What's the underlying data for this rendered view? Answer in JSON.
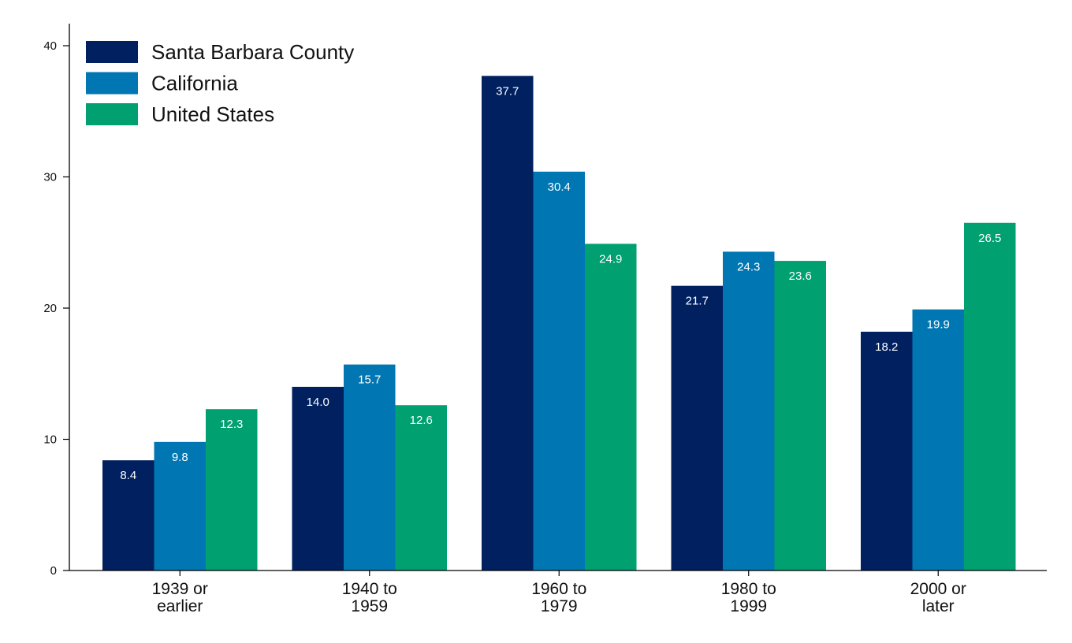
{
  "chart_data": {
    "type": "bar",
    "categories": [
      "1939 or earlier",
      "1940 to 1959",
      "1960 to 1979",
      "1980 to 1999",
      "2000 or later"
    ],
    "category_lines": [
      [
        "1939 or",
        "earlier"
      ],
      [
        "1940 to",
        "1959"
      ],
      [
        "1960 to",
        "1979"
      ],
      [
        "1980 to",
        "1999"
      ],
      [
        "2000 or",
        "later"
      ]
    ],
    "series": [
      {
        "name": "Santa Barbara County",
        "color": "#002060",
        "values": [
          8.4,
          14.0,
          37.7,
          21.7,
          18.2
        ],
        "labels": [
          "8.4",
          "14.0",
          "37.7",
          "21.7",
          "18.2"
        ]
      },
      {
        "name": "California",
        "color": "#0077b3",
        "values": [
          9.8,
          15.7,
          30.4,
          24.3,
          19.9
        ],
        "labels": [
          "9.8",
          "15.7",
          "30.4",
          "24.3",
          "19.9"
        ]
      },
      {
        "name": "United States",
        "color": "#00a070",
        "values": [
          12.3,
          12.6,
          24.9,
          23.6,
          26.5
        ],
        "labels": [
          "12.3",
          "12.6",
          "24.9",
          "23.6",
          "26.5"
        ]
      }
    ],
    "yticks": [
      0,
      10,
      20,
      30,
      40
    ],
    "ytick_labels": [
      "0",
      "10",
      "20",
      "30",
      "40"
    ],
    "ylim": [
      0,
      41.7
    ],
    "title": "",
    "xlabel": "",
    "ylabel": "",
    "grid": false,
    "legend_position": "top-left",
    "data_labels": "inside-top"
  }
}
